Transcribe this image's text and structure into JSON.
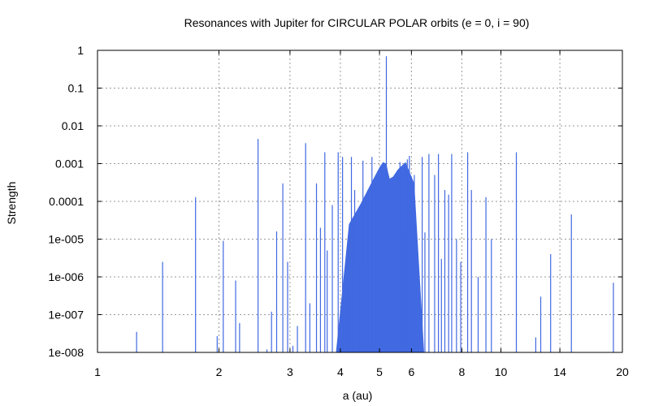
{
  "chart_data": {
    "type": "bar",
    "title": "Resonances with Jupiter for CIRCULAR POLAR orbits (e = 0, i = 90)",
    "xlabel": "a (au)",
    "ylabel": "Strength",
    "x_scale": "log",
    "y_scale": "log",
    "xlim": [
      1,
      20
    ],
    "ylim": [
      1e-08,
      1
    ],
    "grid": true,
    "bar_color": "#4169e1",
    "x_ticks": [
      {
        "value": 1,
        "label": "1"
      },
      {
        "value": 2,
        "label": "2"
      },
      {
        "value": 3,
        "label": "3"
      },
      {
        "value": 4,
        "label": "4"
      },
      {
        "value": 5,
        "label": "5"
      },
      {
        "value": 6,
        "label": "6"
      },
      {
        "value": 8,
        "label": "8"
      },
      {
        "value": 10,
        "label": "10"
      },
      {
        "value": 14,
        "label": "14"
      },
      {
        "value": 20,
        "label": "20"
      }
    ],
    "y_ticks": [
      {
        "value": 1,
        "label": "1"
      },
      {
        "value": 0.1,
        "label": "0.1"
      },
      {
        "value": 0.01,
        "label": "0.01"
      },
      {
        "value": 0.001,
        "label": "0.001"
      },
      {
        "value": 0.0001,
        "label": "0.0001"
      },
      {
        "value": 1e-05,
        "label": "1e-005"
      },
      {
        "value": 1e-06,
        "label": "1e-006"
      },
      {
        "value": 1e-07,
        "label": "1e-007"
      },
      {
        "value": 1e-08,
        "label": "1e-008"
      }
    ],
    "dense_envelope": {
      "a": [
        3.9,
        4.2,
        4.5,
        4.8,
        5.0,
        5.1,
        5.2,
        5.25,
        5.3,
        5.4,
        5.55,
        5.8,
        6.1,
        6.45
      ],
      "strength": [
        1e-08,
        2.5e-05,
        9e-05,
        0.00035,
        0.0008,
        0.0011,
        0.001,
        0.0006,
        0.0004,
        0.00045,
        0.0007,
        0.0011,
        0.0003,
        1e-08
      ]
    },
    "resonances": {
      "a": [
        1.25,
        1.45,
        1.75,
        1.98,
        2.05,
        2.2,
        2.25,
        2.5,
        2.63,
        2.7,
        2.78,
        2.88,
        2.96,
        3.05,
        3.13,
        3.28,
        3.36,
        3.49,
        3.57,
        3.66,
        3.71,
        3.82,
        3.95,
        4.05,
        4.13,
        4.17,
        4.26,
        4.34,
        4.48,
        4.55,
        4.68,
        4.79,
        4.88,
        5.2,
        5.62,
        5.75,
        5.86,
        5.93,
        6.1,
        6.38,
        6.48,
        6.63,
        6.85,
        7.0,
        7.12,
        7.26,
        7.42,
        7.55,
        7.76,
        7.95,
        8.27,
        8.45,
        8.78,
        9.18,
        9.47,
        10.92,
        12.2,
        12.55,
        13.28,
        14.95,
        19.0
      ],
      "strength": [
        3.5e-08,
        2.5e-06,
        0.00013,
        2.7e-08,
        9e-06,
        8e-07,
        6e-08,
        0.0045,
        1.2e-08,
        1.2e-07,
        1.6e-05,
        0.0003,
        2.5e-06,
        1.5e-08,
        5e-08,
        0.0035,
        2e-07,
        0.0003,
        2e-05,
        0.002,
        5e-06,
        8e-05,
        0.002,
        0.0015,
        3e-07,
        6e-06,
        0.0015,
        0.0002,
        3e-06,
        0.0012,
        0.0002,
        0.0015,
        0.0003,
        0.7,
        0.0011,
        2e-05,
        0.0013,
        0.0016,
        0.0005,
        0.0015,
        1.5e-05,
        0.0018,
        0.0005,
        0.0018,
        3e-06,
        0.0002,
        0.00015,
        0.0018,
        1e-05,
        2.5e-06,
        0.002,
        0.0002,
        1e-06,
        0.00013,
        1e-05,
        0.002,
        2.5e-08,
        3e-07,
        4e-06,
        4.5e-05,
        7e-07
      ]
    }
  }
}
